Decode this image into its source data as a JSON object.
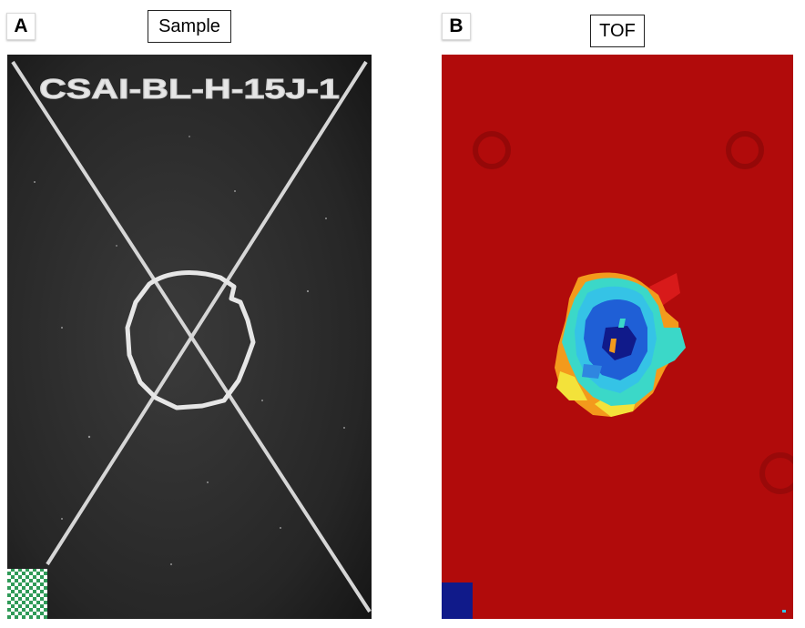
{
  "panels": [
    {
      "letter": "A",
      "title": "Sample"
    },
    {
      "letter": "B",
      "title": "TOF"
    }
  ],
  "sample": {
    "label_text": "CSAI-BL-H-15J-1",
    "colors": {
      "board": "#2a2a2a",
      "marking": "#e6e6e6",
      "corner_tag": "#2f9a57"
    }
  },
  "tof_map": {
    "colors": {
      "background": "#b10b0b",
      "cyan": "#35c3e6",
      "blue": "#1f5fd6",
      "yellow": "#f3e23a",
      "orange": "#f39a1c",
      "dark_blue": "#101a8a"
    }
  }
}
